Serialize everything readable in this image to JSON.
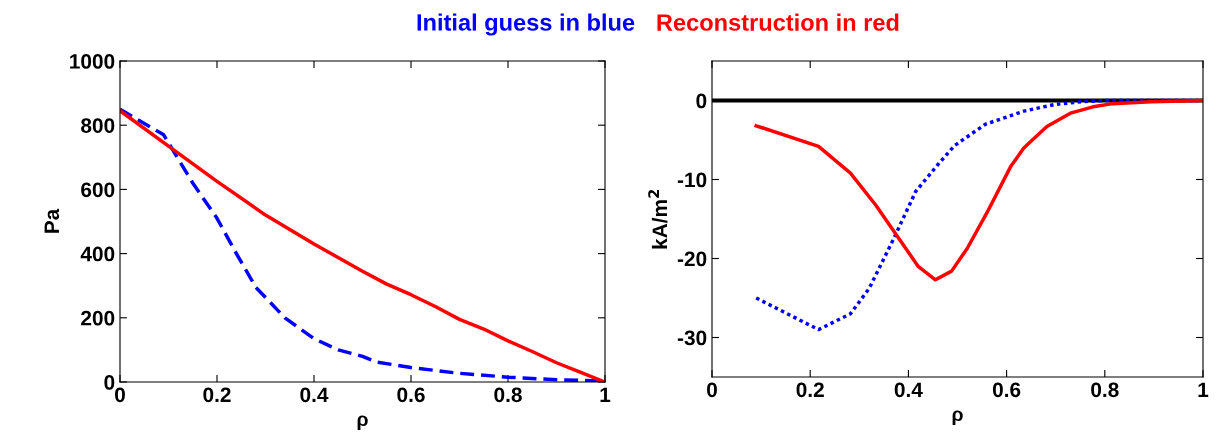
{
  "chart_data": [
    {
      "type": "line",
      "xlabel": "ρ",
      "ylabel": "Pa",
      "xlim": [
        0,
        1
      ],
      "xticks": [
        0,
        0.2,
        0.4,
        0.6,
        0.8,
        1
      ],
      "ylim": [
        0,
        1000
      ],
      "yticks": [
        0,
        200,
        400,
        600,
        800,
        1000
      ],
      "grid": false,
      "series": [
        {
          "name": "Initial guess in blue",
          "color": "#0000ff",
          "line_style": "dashed",
          "x": [
            0,
            0.05,
            0.09,
            0.15,
            0.2,
            0.24,
            0.28,
            0.34,
            0.4,
            0.45,
            0.5,
            0.53,
            0.6,
            0.7,
            0.8,
            0.9,
            1
          ],
          "values": [
            850,
            805,
            770,
            620,
            510,
            400,
            295,
            200,
            135,
            100,
            80,
            62,
            45,
            27,
            15,
            7,
            3
          ]
        },
        {
          "name": "Reconstruction in red",
          "color": "#ff0000",
          "line_style": "solid",
          "x": [
            0,
            0.1,
            0.2,
            0.3,
            0.4,
            0.5,
            0.55,
            0.6,
            0.65,
            0.7,
            0.75,
            0.8,
            0.85,
            0.9,
            0.95,
            1
          ],
          "values": [
            845,
            735,
            625,
            520,
            430,
            345,
            305,
            272,
            235,
            195,
            165,
            128,
            95,
            60,
            30,
            0
          ]
        }
      ]
    },
    {
      "type": "line",
      "xlabel": "ρ",
      "ylabel": "kA/m$^{2}$",
      "xlim": [
        0,
        1
      ],
      "xticks": [
        0,
        0.2,
        0.4,
        0.6,
        0.8,
        1
      ],
      "ylim": [
        -35,
        5
      ],
      "yticks": [
        -30,
        -20,
        -10,
        0
      ],
      "grid": false,
      "ref_lines": [
        {
          "axis": "y",
          "value": 0,
          "color": "#000000"
        }
      ],
      "series": [
        {
          "color": "#0000ff",
          "line_style": "dotted",
          "x": [
            0.09,
            0.217,
            0.282,
            0.32,
            0.37,
            0.415,
            0.463,
            0.494,
            0.557,
            0.635,
            0.698,
            0.753,
            0.8,
            1
          ],
          "values": [
            -25,
            -29,
            -27,
            -23.8,
            -17.5,
            -11.5,
            -7.9,
            -5.7,
            -3,
            -1.35,
            -0.5,
            -0.15,
            0,
            0
          ]
        },
        {
          "color": "#ff0000",
          "line_style": "solid",
          "x": [
            0.09,
            0.217,
            0.282,
            0.333,
            0.42,
            0.455,
            0.488,
            0.52,
            0.56,
            0.608,
            0.635,
            0.682,
            0.73,
            0.776,
            0.816,
            0.894,
            1
          ],
          "values": [
            -3.2,
            -5.8,
            -9.2,
            -13.2,
            -21,
            -22.7,
            -21.6,
            -18.7,
            -14.2,
            -8.4,
            -6,
            -3.3,
            -1.6,
            -0.8,
            -0.4,
            -0.15,
            0
          ]
        }
      ]
    }
  ]
}
